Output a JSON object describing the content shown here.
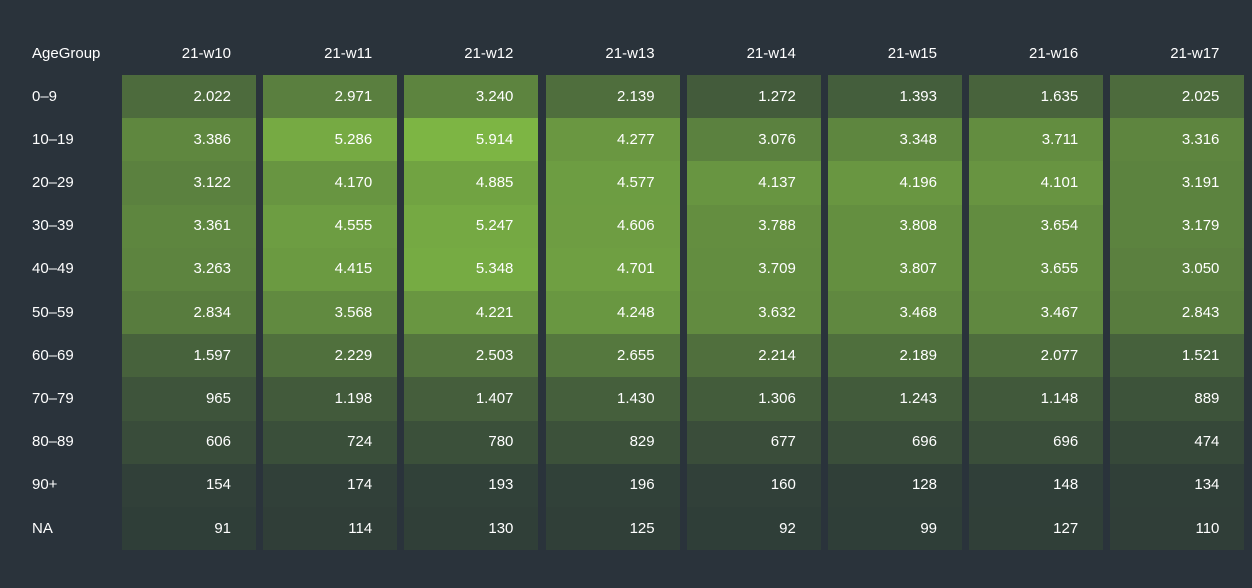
{
  "chart_data": {
    "type": "heatmap",
    "row_header": "AgeGroup",
    "columns": [
      "21-w10",
      "21-w11",
      "21-w12",
      "21-w13",
      "21-w14",
      "21-w15",
      "21-w16",
      "21-w17"
    ],
    "rows": [
      {
        "label": "0–9",
        "values": [
          2022,
          2971,
          3240,
          2139,
          1272,
          1393,
          1635,
          2025
        ],
        "display": [
          "2.022",
          "2.971",
          "3.240",
          "2.139",
          "1.272",
          "1.393",
          "1.635",
          "2.025"
        ]
      },
      {
        "label": "10–19",
        "values": [
          3386,
          5286,
          5914,
          4277,
          3076,
          3348,
          3711,
          3316
        ],
        "display": [
          "3.386",
          "5.286",
          "5.914",
          "4.277",
          "3.076",
          "3.348",
          "3.711",
          "3.316"
        ]
      },
      {
        "label": "20–29",
        "values": [
          3122,
          4170,
          4885,
          4577,
          4137,
          4196,
          4101,
          3191
        ],
        "display": [
          "3.122",
          "4.170",
          "4.885",
          "4.577",
          "4.137",
          "4.196",
          "4.101",
          "3.191"
        ]
      },
      {
        "label": "30–39",
        "values": [
          3361,
          4555,
          5247,
          4606,
          3788,
          3808,
          3654,
          3179
        ],
        "display": [
          "3.361",
          "4.555",
          "5.247",
          "4.606",
          "3.788",
          "3.808",
          "3.654",
          "3.179"
        ]
      },
      {
        "label": "40–49",
        "values": [
          3263,
          4415,
          5348,
          4701,
          3709,
          3807,
          3655,
          3050
        ],
        "display": [
          "3.263",
          "4.415",
          "5.348",
          "4.701",
          "3.709",
          "3.807",
          "3.655",
          "3.050"
        ]
      },
      {
        "label": "50–59",
        "values": [
          2834,
          3568,
          4221,
          4248,
          3632,
          3468,
          3467,
          2843
        ],
        "display": [
          "2.834",
          "3.568",
          "4.221",
          "4.248",
          "3.632",
          "3.468",
          "3.467",
          "2.843"
        ]
      },
      {
        "label": "60–69",
        "values": [
          1597,
          2229,
          2503,
          2655,
          2214,
          2189,
          2077,
          1521
        ],
        "display": [
          "1.597",
          "2.229",
          "2.503",
          "2.655",
          "2.214",
          "2.189",
          "2.077",
          "1.521"
        ]
      },
      {
        "label": "70–79",
        "values": [
          965,
          1198,
          1407,
          1430,
          1306,
          1243,
          1148,
          889
        ],
        "display": [
          "965",
          "1.198",
          "1.407",
          "1.430",
          "1.306",
          "1.243",
          "1.148",
          "889"
        ]
      },
      {
        "label": "80–89",
        "values": [
          606,
          724,
          780,
          829,
          677,
          696,
          696,
          474
        ],
        "display": [
          "606",
          "724",
          "780",
          "829",
          "677",
          "696",
          "696",
          "474"
        ]
      },
      {
        "label": "90+",
        "values": [
          154,
          174,
          193,
          196,
          160,
          128,
          148,
          134
        ],
        "display": [
          "154",
          "174",
          "193",
          "196",
          "160",
          "128",
          "148",
          "134"
        ]
      },
      {
        "label": "NA",
        "values": [
          91,
          114,
          130,
          125,
          92,
          99,
          127,
          110
        ],
        "display": [
          "91",
          "114",
          "130",
          "125",
          "92",
          "99",
          "127",
          "110"
        ]
      }
    ],
    "color_scale": {
      "low": "#2d3a38",
      "high": "#7db544"
    },
    "background": "#2a333b"
  }
}
